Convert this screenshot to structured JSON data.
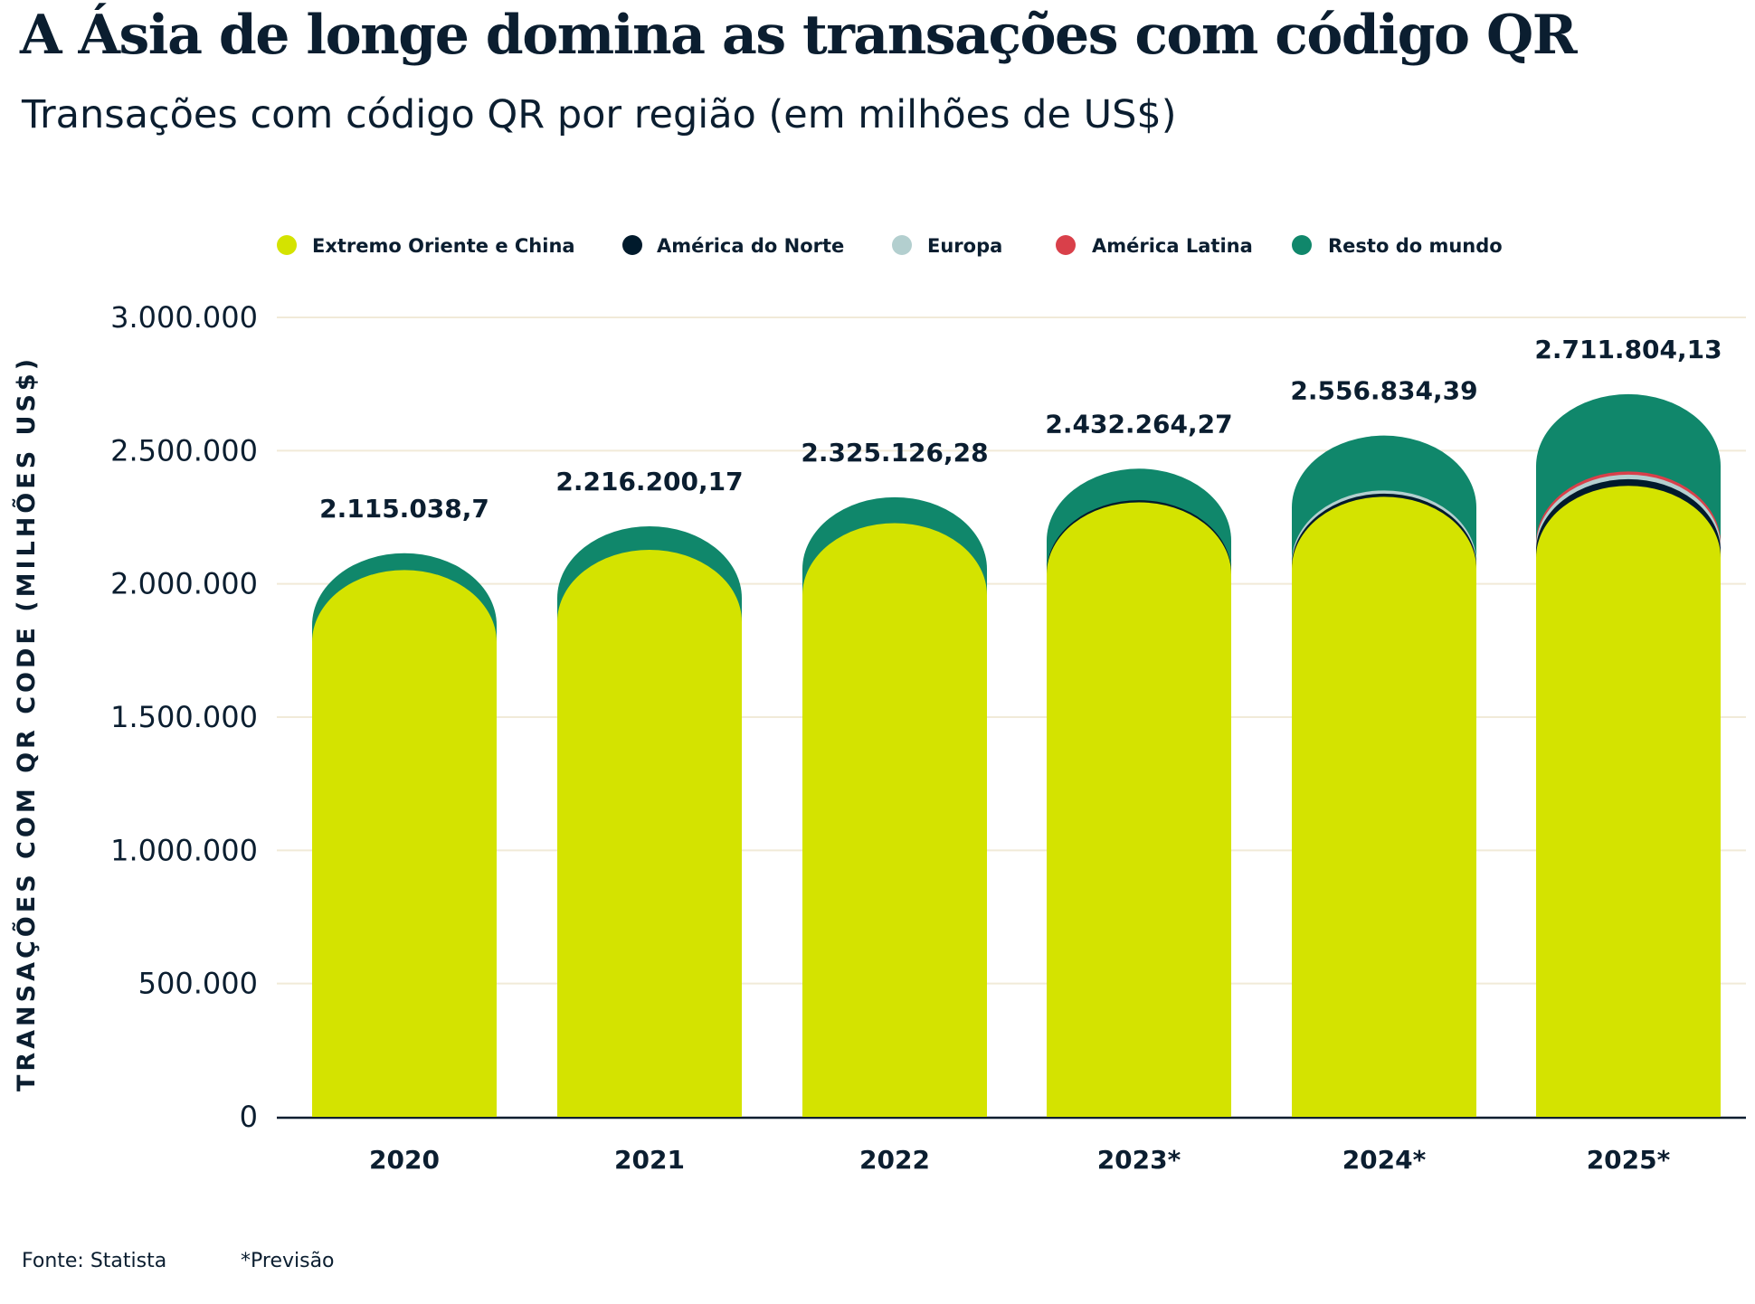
{
  "chart_data": {
    "type": "bar",
    "stacked": true,
    "title": "A Ásia de longe domina as transações com código QR",
    "subtitle": "Transações com código QR por região (em milhões de US$)",
    "ylabel": "TRANSAÇÕES COM QR CODE (MILHÕES US$)",
    "xlabel": "",
    "ylim": [
      0,
      3000000
    ],
    "yticks": [
      0,
      500000,
      1000000,
      1500000,
      2000000,
      2500000,
      3000000
    ],
    "ytick_labels": [
      "0",
      "500.000",
      "1.000.000",
      "1.500.000",
      "2.000.000",
      "2.500.000",
      "3.000.000"
    ],
    "grid": true,
    "legend_position": "top",
    "categories": [
      "2020",
      "2021",
      "2022",
      "2023*",
      "2024*",
      "2025*"
    ],
    "totals": [
      2115038.7,
      2216200.17,
      2325126.28,
      2432264.27,
      2556834.39,
      2711804.13
    ],
    "total_labels": [
      "2.115.038,7",
      "2.216.200,17",
      "2.325.126,28",
      "2.432.264,27",
      "2.556.834,39",
      "2.711.804,13"
    ],
    "series": [
      {
        "name": "Extremo Oriente e China",
        "color": "#d4e300",
        "values": [
          2052000,
          2128000,
          2228000,
          2306000,
          2327000,
          2368000
        ]
      },
      {
        "name": "América do Norte",
        "color": "#001a2c",
        "values": [
          0,
          0,
          0,
          8000,
          12000,
          25000
        ]
      },
      {
        "name": "Europa",
        "color": "#b3cfcf",
        "values": [
          0,
          0,
          0,
          0,
          12000,
          17000
        ]
      },
      {
        "name": "América Latina",
        "color": "#d9404a",
        "values": [
          0,
          0,
          0,
          0,
          0,
          12000
        ]
      },
      {
        "name": "Resto do mundo",
        "color": "#10876b",
        "values": [
          63039,
          88200,
          97126,
          118264,
          205834,
          289804
        ]
      }
    ],
    "gridline_color": "#f1ead8"
  },
  "footer": {
    "source": "Fonte: Statista",
    "note": "*Previsão"
  }
}
